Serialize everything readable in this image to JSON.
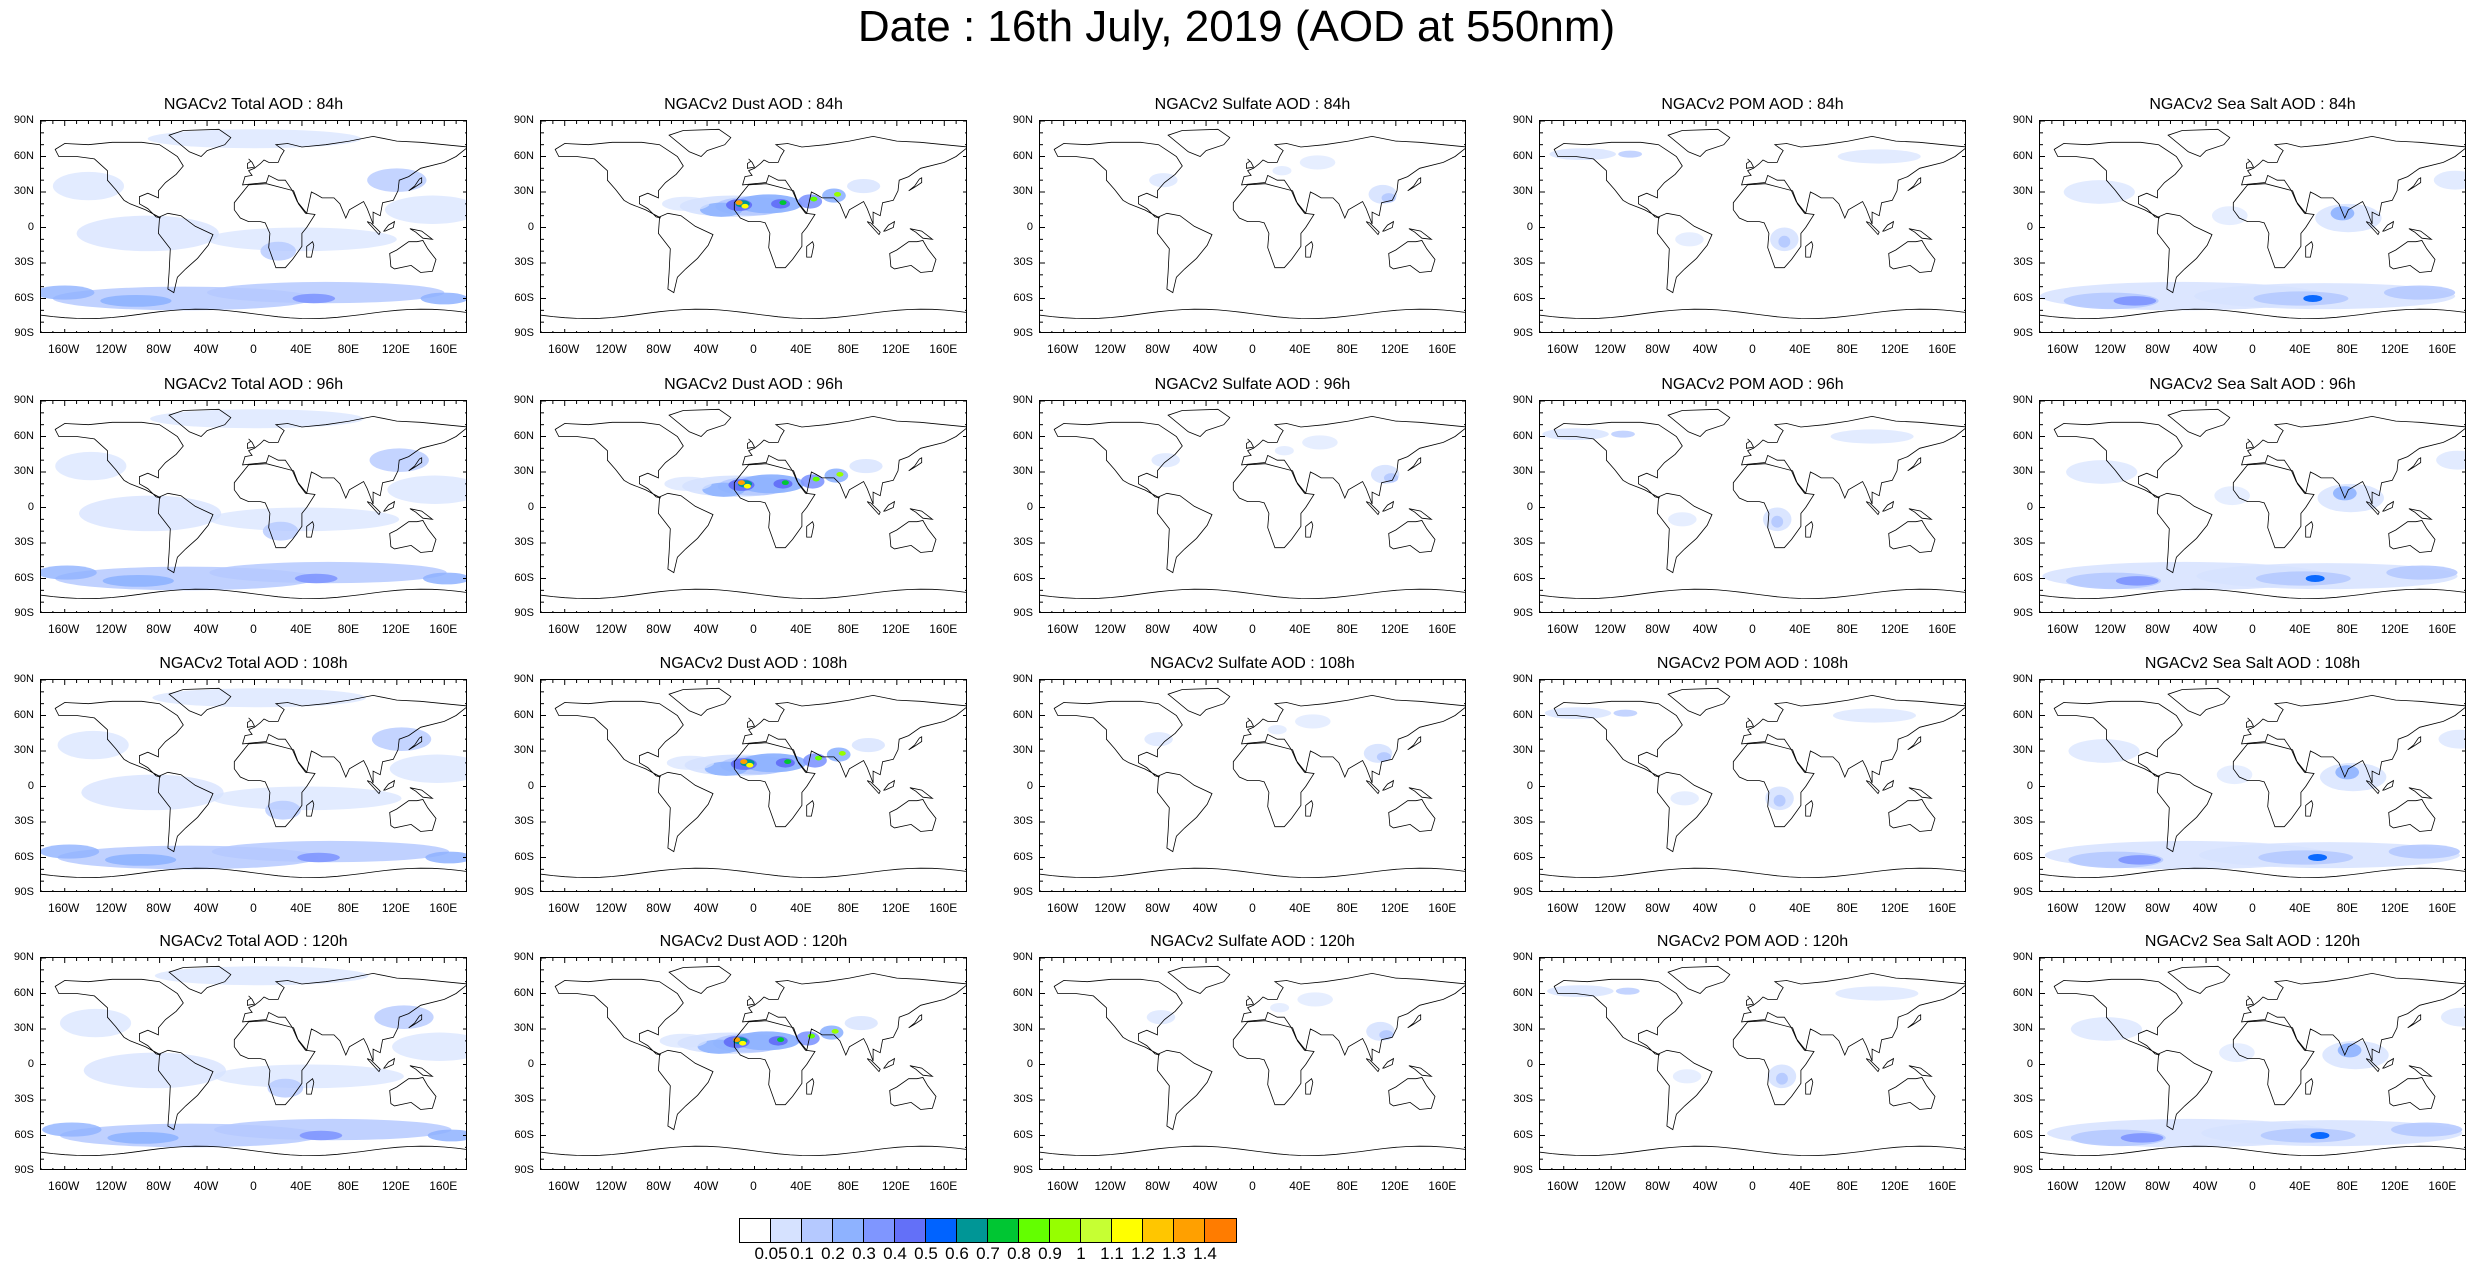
{
  "title": "Date : 16th July, 2019 (AOD at 550nm)",
  "lat_labels": [
    "90N",
    "60N",
    "30N",
    "0",
    "30S",
    "60S",
    "90S"
  ],
  "lon_labels": [
    "160W",
    "120W",
    "80W",
    "40W",
    "0",
    "40E",
    "80E",
    "120E",
    "160E"
  ],
  "lon_values": [
    -160,
    -120,
    -80,
    -40,
    0,
    40,
    80,
    120,
    160
  ],
  "lat_values": [
    90,
    60,
    30,
    0,
    -30,
    -60,
    -90
  ],
  "panels": [
    {
      "title": "NGACv2 Total AOD : 84h",
      "species": "total"
    },
    {
      "title": "NGACv2 Dust AOD : 84h",
      "species": "dust"
    },
    {
      "title": "NGACv2 Sulfate AOD : 84h",
      "species": "sulfate"
    },
    {
      "title": "NGACv2 POM AOD : 84h",
      "species": "pom"
    },
    {
      "title": "NGACv2 Sea Salt AOD : 84h",
      "species": "seasalt"
    },
    {
      "title": "NGACv2 Total AOD : 96h",
      "species": "total"
    },
    {
      "title": "NGACv2 Dust AOD : 96h",
      "species": "dust"
    },
    {
      "title": "NGACv2 Sulfate AOD : 96h",
      "species": "sulfate"
    },
    {
      "title": "NGACv2 POM AOD : 96h",
      "species": "pom"
    },
    {
      "title": "NGACv2 Sea Salt AOD : 96h",
      "species": "seasalt"
    },
    {
      "title": "NGACv2 Total AOD : 108h",
      "species": "total"
    },
    {
      "title": "NGACv2 Dust AOD : 108h",
      "species": "dust"
    },
    {
      "title": "NGACv2 Sulfate AOD : 108h",
      "species": "sulfate"
    },
    {
      "title": "NGACv2 POM AOD : 108h",
      "species": "pom"
    },
    {
      "title": "NGACv2 Sea Salt AOD : 108h",
      "species": "seasalt"
    },
    {
      "title": "NGACv2 Total AOD : 120h",
      "species": "total"
    },
    {
      "title": "NGACv2 Dust AOD : 120h",
      "species": "dust"
    },
    {
      "title": "NGACv2 Sulfate AOD : 120h",
      "species": "sulfate"
    },
    {
      "title": "NGACv2 POM AOD : 120h",
      "species": "pom"
    },
    {
      "title": "NGACv2 Sea Salt  AOD : 120h",
      "species": "seasalt"
    }
  ],
  "colorbar": {
    "colors": [
      "#ffffff",
      "#d6e2ff",
      "#b5c9ff",
      "#8eb2ff",
      "#7f96ff",
      "#6370f8",
      "#0063ff",
      "#009696",
      "#00c633",
      "#63ff00",
      "#96ff00",
      "#c6ff33",
      "#ffff00",
      "#ffc600",
      "#ffa000",
      "#ff7c00",
      "#ff1900"
    ],
    "labels": [
      "0.05",
      "0.1",
      "0.2",
      "0.3",
      "0.4",
      "0.5",
      "0.6",
      "0.7",
      "0.8",
      "0.9",
      "1",
      "1.1",
      "1.2",
      "1.3",
      "1.4"
    ]
  }
}
